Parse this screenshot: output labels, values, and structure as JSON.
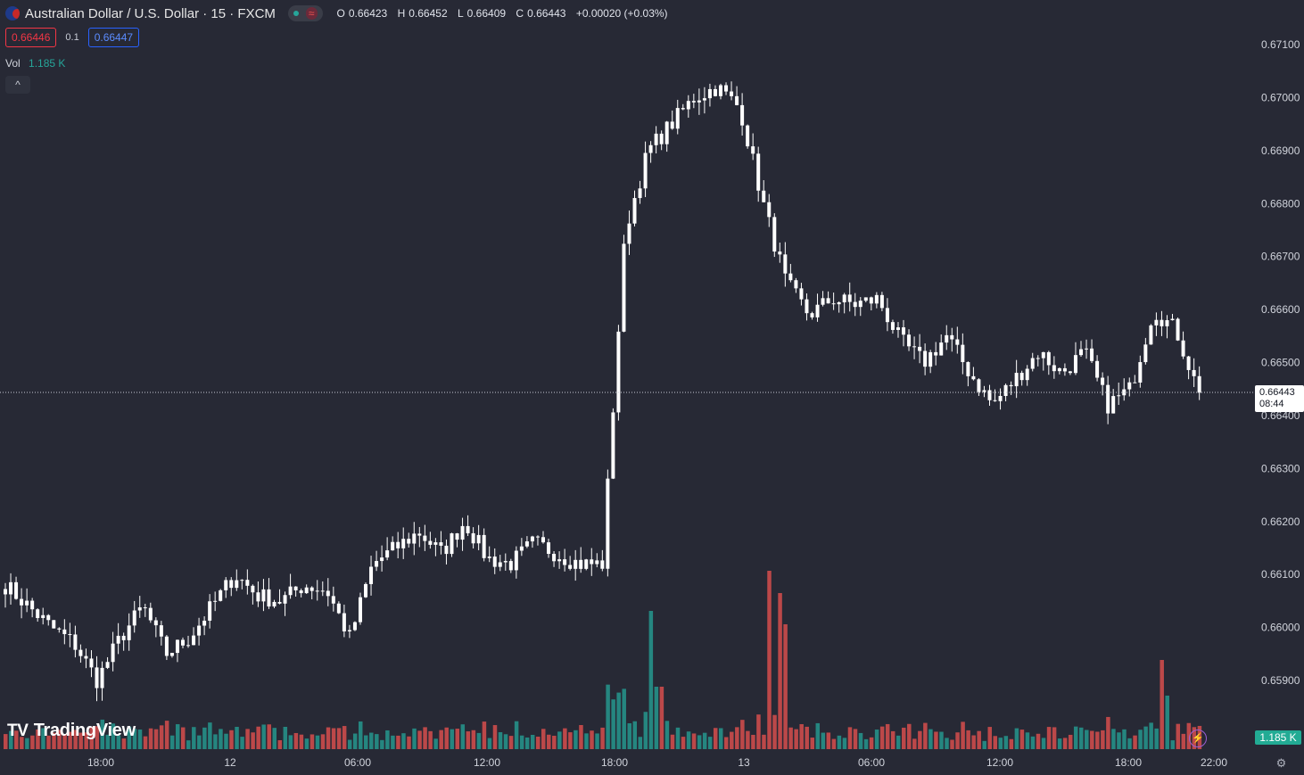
{
  "header": {
    "title": "Australian Dollar / U.S. Dollar · 15 · FXCM",
    "ohlc": {
      "o_label": "O",
      "o": "0.66423",
      "h_label": "H",
      "h": "0.66452",
      "l_label": "L",
      "l": "0.66409",
      "c_label": "C",
      "c": "0.66443",
      "change": "+0.00020 (+0.03%)"
    },
    "market_status_icon": "dot-icon",
    "replay_icon": "tilde-icon"
  },
  "trade": {
    "sell": "0.66446",
    "spread": "0.1",
    "buy": "0.66447"
  },
  "volume_legend": {
    "label": "Vol",
    "value": "1.185 K"
  },
  "collapse_icon": "chevron-up-icon",
  "brand": {
    "text": "TradingView",
    "mark": "TV"
  },
  "last_price_tag": {
    "price": "0.66443",
    "countdown": "08:44"
  },
  "volume_tag": "1.185 K",
  "colors": {
    "background": "#272935",
    "up": "#ffffff",
    "down": "#ffffff",
    "vol_up": "#26a69a",
    "vol_down": "#ef5350",
    "axis_text": "#d1d4dc"
  },
  "chart_data": {
    "type": "candlestick",
    "y_axis": {
      "ticks": [
        "0.67100",
        "0.67000",
        "0.66900",
        "0.66800",
        "0.66700",
        "0.66600",
        "0.66500",
        "0.66400",
        "0.66300",
        "0.66200",
        "0.66100",
        "0.66000",
        "0.65900"
      ],
      "min": 0.6588,
      "max": 0.6712
    },
    "x_axis": {
      "ticks": [
        "18:00",
        "12",
        "06:00",
        "12:00",
        "18:00",
        "13",
        "06:00",
        "12:00",
        "18:00",
        "22:00"
      ]
    },
    "last_price": 0.66443,
    "closes_sampled": [
      0.6608,
      0.6604,
      0.66,
      0.6597,
      0.659,
      0.6598,
      0.6604,
      0.6595,
      0.6598,
      0.6604,
      0.661,
      0.6606,
      0.6605,
      0.6608,
      0.6607,
      0.6598,
      0.6612,
      0.6615,
      0.6618,
      0.6614,
      0.662,
      0.6613,
      0.6612,
      0.6616,
      0.6614,
      0.6612,
      0.6612,
      0.6675,
      0.669,
      0.6695,
      0.67,
      0.6702,
      0.6698,
      0.668,
      0.6665,
      0.6659,
      0.6662,
      0.6661,
      0.6662,
      0.6654,
      0.665,
      0.6655,
      0.6648,
      0.6642,
      0.6647,
      0.6652,
      0.6648,
      0.6652,
      0.6642,
      0.6645,
      0.666,
      0.6656,
      0.6644
    ]
  }
}
